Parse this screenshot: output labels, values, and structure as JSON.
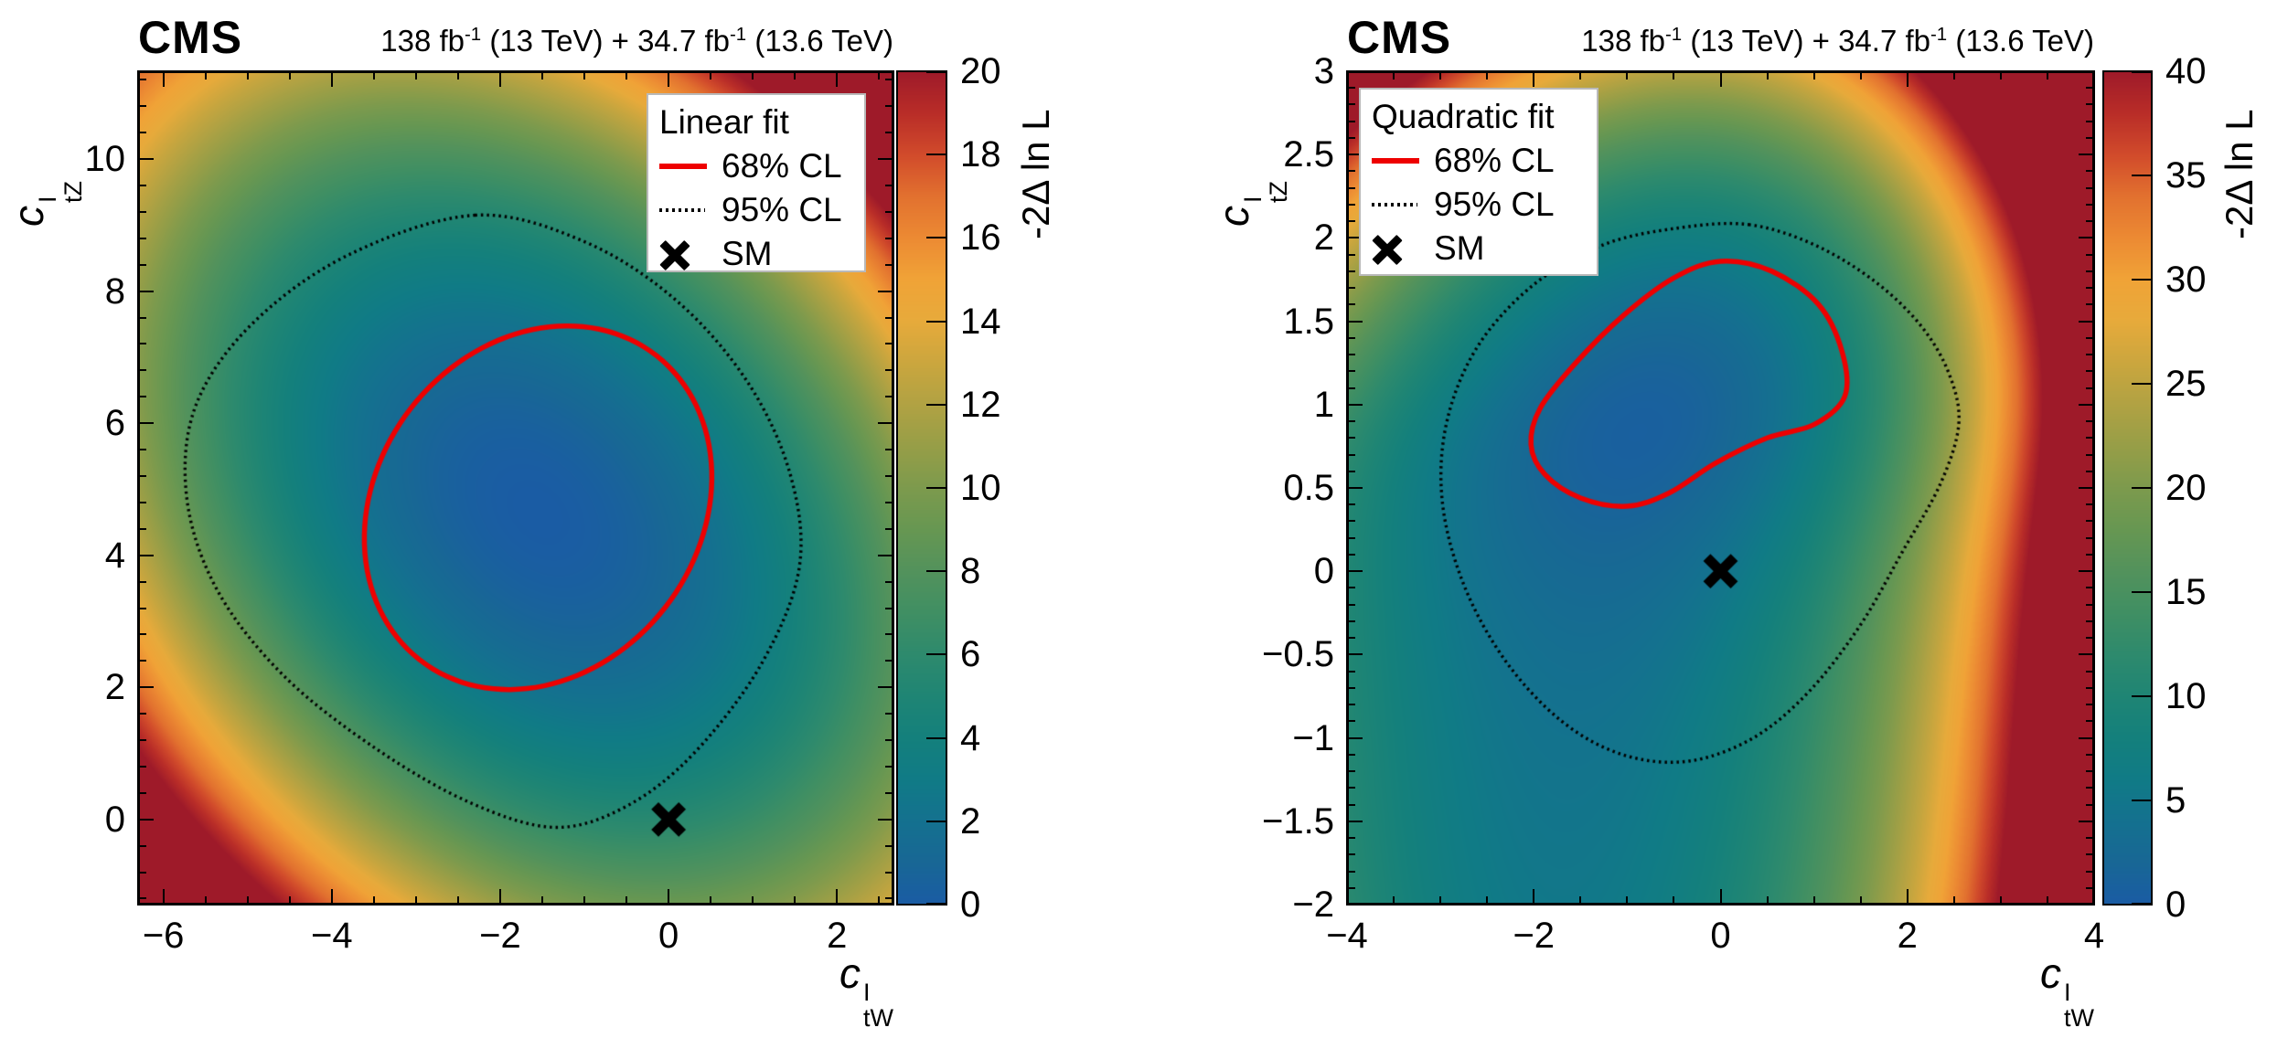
{
  "header": {
    "experiment": "CMS",
    "luminosity": [
      {
        "text": "138 fb"
      },
      {
        "sup": "-1"
      },
      {
        "text": " (13 TeV) + 34.7 fb"
      },
      {
        "sup": "-1"
      },
      {
        "text": " (13.6 TeV)"
      }
    ]
  },
  "palette": {
    "stops": [
      [
        0.0,
        "#1a5ca4"
      ],
      [
        0.05,
        "#186795"
      ],
      [
        0.1,
        "#14718f"
      ],
      [
        0.15,
        "#107b86"
      ],
      [
        0.2,
        "#14807c"
      ],
      [
        0.25,
        "#1f8574"
      ],
      [
        0.3,
        "#2e8a6d"
      ],
      [
        0.35,
        "#408f63"
      ],
      [
        0.4,
        "#53925c"
      ],
      [
        0.45,
        "#679752"
      ],
      [
        0.5,
        "#7d9a4d"
      ],
      [
        0.55,
        "#979e47"
      ],
      [
        0.6,
        "#b1a243"
      ],
      [
        0.65,
        "#cba63e"
      ],
      [
        0.7,
        "#e7aa3b"
      ],
      [
        0.75,
        "#f0a337"
      ],
      [
        0.8,
        "#ec8a33"
      ],
      [
        0.85,
        "#e2712f"
      ],
      [
        0.9,
        "#d14b2b"
      ],
      [
        0.95,
        "#b92d28"
      ],
      [
        1.0,
        "#9e1a29"
      ]
    ]
  },
  "contour_colors": {
    "cl68": "#ee0000",
    "cl95": "#000000",
    "sm_marker": "#000000"
  },
  "chart_data": [
    {
      "type": "heatmap",
      "fit_type": "Linear fit",
      "x": {
        "title": {
          "base": "c",
          "sup": "I",
          "sub": "tW"
        },
        "min": -6.3,
        "max": 2.67,
        "tick_values": [
          -6,
          -4,
          -2,
          0,
          2
        ],
        "tick_labels": [
          "−6",
          "−4",
          "−2",
          "0",
          "2"
        ],
        "minor_step": 0.5
      },
      "y": {
        "title": {
          "base": "c",
          "sup": "I",
          "sub": "tZ"
        },
        "min": -1.29,
        "max": 11.33,
        "tick_values": [
          0,
          2,
          4,
          6,
          8,
          10
        ],
        "tick_labels": [
          "0",
          "2",
          "4",
          "6",
          "8",
          "10"
        ],
        "minor_step": 0.4
      },
      "z": {
        "title": "-2Δ ln L",
        "min": 0,
        "max": 20,
        "tick_values": [
          0,
          2,
          4,
          6,
          8,
          10,
          12,
          14,
          16,
          18,
          20
        ],
        "tick_labels": [
          "0",
          "2",
          "4",
          "6",
          "8",
          "10",
          "12",
          "14",
          "16",
          "18",
          "20"
        ]
      },
      "best_fit": {
        "x": -1.55,
        "y": 4.65
      },
      "sm_point": {
        "x": 0,
        "y": 0,
        "label": "SM"
      },
      "field": {
        "cx": -1.55,
        "cy": 4.65,
        "a": 0.5,
        "b_up": 0.29,
        "b_down": 0.29,
        "c": 0.26,
        "sat_down": 0,
        "q": 0.0008,
        "qa": 1.0,
        "qb": 0.35,
        "qc": 0.0,
        "qcx": -1.55,
        "qcy": 4.65
      },
      "contours": {
        "cl68": {
          "style": "solid-red",
          "shape": "ellipse",
          "cx": -1.55,
          "cy": 4.72,
          "rx": 2.0,
          "ry": 2.8,
          "rot_deg": -15
        },
        "cl95": {
          "style": "dotted-black",
          "shape": "polygon",
          "points": [
            [
              -2.3,
              9.15
            ],
            [
              -1.0,
              8.75
            ],
            [
              0.1,
              7.85
            ],
            [
              0.95,
              6.6
            ],
            [
              1.45,
              5.2
            ],
            [
              1.55,
              3.8
            ],
            [
              1.1,
              2.35
            ],
            [
              0.3,
              1.0
            ],
            [
              -0.5,
              0.2
            ],
            [
              -1.35,
              -0.12
            ],
            [
              -2.35,
              0.25
            ],
            [
              -3.45,
              1.05
            ],
            [
              -4.55,
              2.15
            ],
            [
              -5.35,
              3.45
            ],
            [
              -5.72,
              4.85
            ],
            [
              -5.62,
              6.25
            ],
            [
              -4.95,
              7.5
            ],
            [
              -3.8,
              8.55
            ]
          ]
        }
      },
      "legend": {
        "title": "Linear fit",
        "entries": [
          {
            "swatch": "line-red",
            "label": "68% CL"
          },
          {
            "swatch": "line-dotted",
            "label": "95% CL"
          },
          {
            "swatch": "marker-x",
            "label": "SM"
          }
        ]
      }
    },
    {
      "type": "heatmap",
      "fit_type": "Quadratic fit",
      "x": {
        "title": {
          "base": "c",
          "sup": "I",
          "sub": "tW"
        },
        "min": -4,
        "max": 4,
        "tick_values": [
          -4,
          -2,
          0,
          2,
          4
        ],
        "tick_labels": [
          "−4",
          "−2",
          "0",
          "2",
          "4"
        ],
        "minor_step": 0.5
      },
      "y": {
        "title": {
          "base": "c",
          "sup": "I",
          "sub": "tZ"
        },
        "min": -2,
        "max": 3,
        "tick_values": [
          3,
          2.5,
          2,
          1.5,
          1,
          0.5,
          0,
          -0.5,
          -1,
          -1.5,
          -2
        ],
        "tick_labels": [
          "3",
          "2.5",
          "2",
          "1.5",
          "1",
          "0.5",
          "0",
          "−0.5",
          "−1",
          "−1.5",
          "−2"
        ],
        "minor_step": 0.1
      },
      "z": {
        "title": "-2Δ ln L",
        "min": 0,
        "max": 40,
        "tick_values": [
          0,
          5,
          10,
          15,
          20,
          25,
          30,
          35,
          40
        ],
        "tick_labels": [
          "0",
          "5",
          "10",
          "15",
          "20",
          "25",
          "30",
          "35",
          "40"
        ]
      },
      "best_fit": {
        "x": -0.4,
        "y": 1.05
      },
      "sm_point": {
        "x": 0,
        "y": 0,
        "label": "SM"
      },
      "field": {
        "cx": -0.4,
        "cy": 1.05,
        "a": 1.05,
        "b_up": 3.6,
        "b_down": 4.6,
        "c": -2.2,
        "sat_down": 0.56,
        "q": 0.016,
        "qa": 1.0,
        "qb": 1.6,
        "qc": 0.3,
        "qcx": -2.2,
        "qcy": -0.6
      },
      "contours": {
        "cl68": {
          "style": "solid-red",
          "shape": "polygon",
          "points": [
            [
              0.0,
              1.86
            ],
            [
              0.55,
              1.8
            ],
            [
              1.05,
              1.6
            ],
            [
              1.3,
              1.32
            ],
            [
              1.33,
              1.05
            ],
            [
              1.0,
              0.88
            ],
            [
              0.5,
              0.8
            ],
            [
              -0.05,
              0.65
            ],
            [
              -0.55,
              0.47
            ],
            [
              -1.0,
              0.39
            ],
            [
              -1.5,
              0.44
            ],
            [
              -1.88,
              0.58
            ],
            [
              -2.03,
              0.76
            ],
            [
              -1.93,
              0.98
            ],
            [
              -1.55,
              1.25
            ],
            [
              -1.05,
              1.53
            ],
            [
              -0.5,
              1.76
            ]
          ]
        },
        "cl95": {
          "style": "dotted-black",
          "shape": "polygon",
          "points": [
            [
              0.3,
              2.08
            ],
            [
              1.0,
              1.96
            ],
            [
              1.65,
              1.74
            ],
            [
              2.15,
              1.47
            ],
            [
              2.45,
              1.18
            ],
            [
              2.55,
              0.88
            ],
            [
              2.35,
              0.52
            ],
            [
              1.95,
              0.12
            ],
            [
              1.5,
              -0.32
            ],
            [
              0.95,
              -0.72
            ],
            [
              0.35,
              -1.0
            ],
            [
              -0.35,
              -1.14
            ],
            [
              -1.05,
              -1.1
            ],
            [
              -1.7,
              -0.9
            ],
            [
              -2.3,
              -0.54
            ],
            [
              -2.75,
              -0.08
            ],
            [
              -2.98,
              0.42
            ],
            [
              -2.93,
              0.9
            ],
            [
              -2.6,
              1.35
            ],
            [
              -2.0,
              1.72
            ],
            [
              -1.25,
              1.96
            ],
            [
              -0.45,
              2.06
            ]
          ]
        }
      },
      "legend": {
        "title": "Quadratic fit",
        "entries": [
          {
            "swatch": "line-red",
            "label": "68% CL"
          },
          {
            "swatch": "line-dotted",
            "label": "95% CL"
          },
          {
            "swatch": "marker-x",
            "label": "SM"
          }
        ]
      }
    }
  ]
}
